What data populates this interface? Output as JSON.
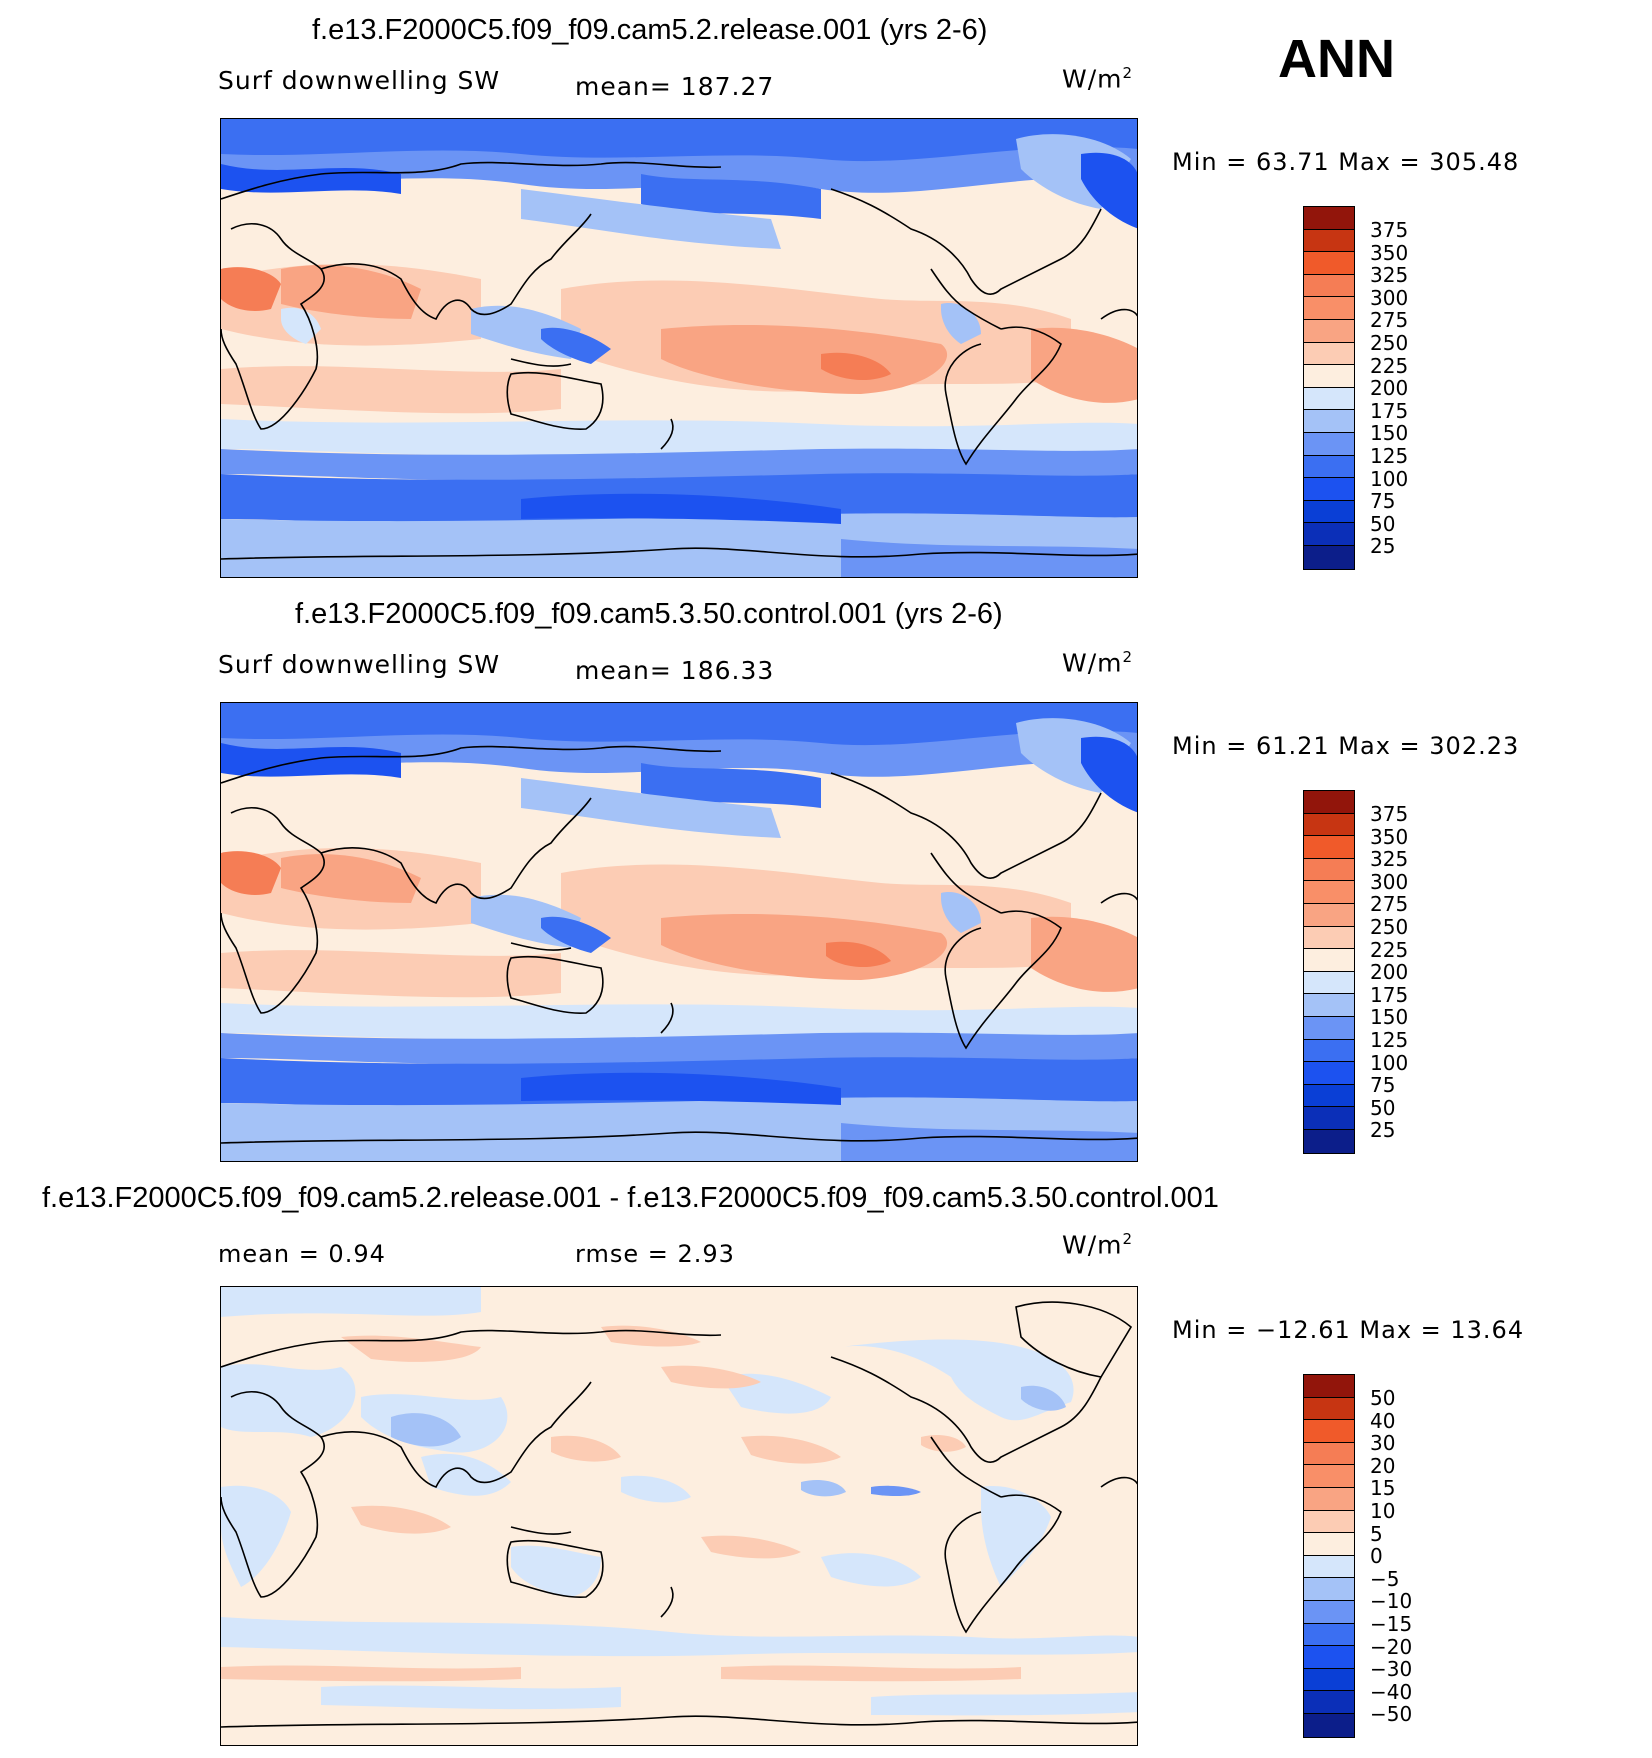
{
  "season": "ANN",
  "panels": [
    {
      "title": "f.e13.F2000C5.f09_f09.cam5.2.release.001 (yrs 2-6)",
      "left_label": "Surf  downwelling  SW",
      "center_label": "mean=  187.27",
      "units": "W/m",
      "units_sup": "2",
      "stats": "Min  =    63.71  Max  =  305.48",
      "palette": [
        "#0c1e8a",
        "#0b2fb8",
        "#0a3fd6",
        "#1c52f0",
        "#3b6ff2",
        "#6b94f5",
        "#a4c2f7",
        "#d5e6fb",
        "#fdeedf",
        "#fcccb4",
        "#f9a483",
        "#f57d55",
        "#f05a2a",
        "#c73512",
        "#92150b"
      ],
      "levels": [
        "375",
        "350",
        "325",
        "300",
        "275",
        "250",
        "225",
        "200",
        "175",
        "150",
        "125",
        "100",
        "75",
        "50",
        "25"
      ]
    },
    {
      "title": "f.e13.F2000C5.f09_f09.cam5.3.50.control.001 (yrs 2-6)",
      "left_label": "Surf  downwelling  SW",
      "center_label": "mean=  186.33",
      "units": "W/m",
      "units_sup": "2",
      "stats": "Min  =    61.21  Max  =  302.23",
      "palette": [
        "#0c1e8a",
        "#0b2fb8",
        "#0a3fd6",
        "#1c52f0",
        "#3b6ff2",
        "#6b94f5",
        "#a4c2f7",
        "#d5e6fb",
        "#fdeedf",
        "#fcccb4",
        "#f9a483",
        "#f57d55",
        "#f05a2a",
        "#c73512",
        "#92150b"
      ],
      "levels": [
        "375",
        "350",
        "325",
        "300",
        "275",
        "250",
        "225",
        "200",
        "175",
        "150",
        "125",
        "100",
        "75",
        "50",
        "25"
      ]
    },
    {
      "title": "f.e13.F2000C5.f09_f09.cam5.2.release.001 - f.e13.F2000C5.f09_f09.cam5.3.50.control.001",
      "left_label": "mean  =     0.94",
      "center_label": "rmse  =     2.93",
      "units": "W/m",
      "units_sup": "2",
      "stats": "Min  =  −12.61  Max  =     13.64",
      "palette": [
        "#0c1e8a",
        "#0b2fb8",
        "#0a3fd6",
        "#1c52f0",
        "#3b6ff2",
        "#6b94f5",
        "#a4c2f7",
        "#d5e6fb",
        "#fdeedf",
        "#fcccb4",
        "#f9a483",
        "#f57d55",
        "#f05a2a",
        "#c73512",
        "#92150b"
      ],
      "levels": [
        "50",
        "40",
        "30",
        "20",
        "15",
        "10",
        "5",
        "0",
        "−5",
        "−10",
        "−15",
        "−20",
        "−30",
        "−40",
        "−50"
      ]
    }
  ]
}
